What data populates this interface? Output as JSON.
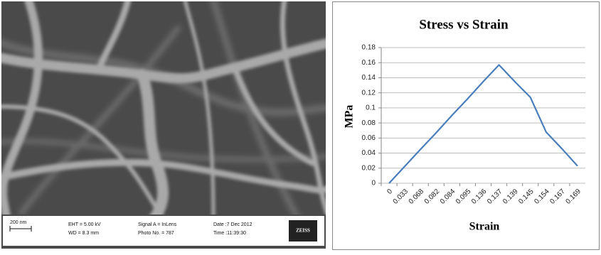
{
  "micrograph": {
    "scale_bar": "200 nm",
    "eht": "EHT = 5.00 kV",
    "wd": "WD = 8.3 mm",
    "signal": "Signal A = InLens",
    "photo_no": "Photo No. = 787",
    "date": "Date :7 Dec 2012",
    "time": "Time :11:39:30",
    "logo": "ZEISS"
  },
  "chart_data": {
    "type": "line",
    "title": "Stress vs Strain",
    "x_label": "Strain",
    "y_label": "MPa",
    "categories": [
      "0",
      "0.033",
      "0.068",
      "0.082",
      "0.084",
      "0.095",
      "0.136",
      "0.137",
      "0.139",
      "0.145",
      "0.154",
      "0.167",
      "0.169"
    ],
    "values": [
      0,
      0.0225,
      0.045,
      0.067,
      0.09,
      0.112,
      0.135,
      0.157,
      0.135,
      0.114,
      0.068,
      0.046,
      0.023
    ],
    "color": "#4a7ebb",
    "ylim": [
      0,
      0.18
    ],
    "yticks": [
      0,
      0.02,
      0.04,
      0.06,
      0.08,
      0.1,
      0.12,
      0.14,
      0.16,
      0.18
    ],
    "grid": true
  }
}
